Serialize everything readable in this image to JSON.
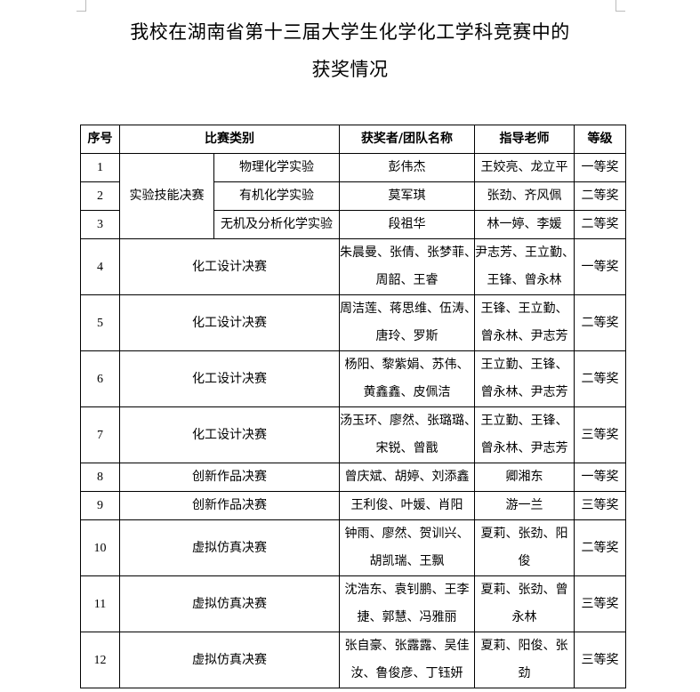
{
  "document": {
    "title_line1": "我校在湖南省第十三届大学生化学化工学科竞赛中的",
    "title_line2": "获奖情况"
  },
  "table": {
    "headers": {
      "no": "序号",
      "category": "比赛类别",
      "winner": "获奖者/团队名称",
      "advisor": "指导老师",
      "grade": "等级"
    },
    "group_category": "实验技能决赛",
    "rows": [
      {
        "no": "1",
        "category": "物理化学实验",
        "winner": [
          "彭伟杰"
        ],
        "advisor": [
          "王姣亮、龙立平"
        ],
        "grade": "一等奖"
      },
      {
        "no": "2",
        "category": "有机化学实验",
        "winner": [
          "莫军琪"
        ],
        "advisor": [
          "张劲、齐风佩"
        ],
        "grade": "二等奖"
      },
      {
        "no": "3",
        "category": "无机及分析化学实验",
        "winner": [
          "段祖华"
        ],
        "advisor": [
          "林一婷、李媛"
        ],
        "grade": "二等奖"
      },
      {
        "no": "4",
        "category": "化工设计决赛",
        "winner": [
          "朱晨曼、张倩、张梦菲、",
          "周韶、王睿"
        ],
        "advisor": [
          "尹志芳、王立勤、",
          "王锋、曾永林"
        ],
        "grade": "一等奖"
      },
      {
        "no": "5",
        "category": "化工设计决赛",
        "winner": [
          "周洁莲、蒋思维、伍涛、",
          "唐玲、罗斯"
        ],
        "advisor": [
          "王锋、王立勤、",
          "曾永林、尹志芳"
        ],
        "grade": "二等奖"
      },
      {
        "no": "6",
        "category": "化工设计决赛",
        "winner": [
          "杨阳、黎紫娟、苏伟、",
          "黄鑫鑫、皮佩洁"
        ],
        "advisor": [
          "王立勤、王锋、",
          "曾永林、尹志芳"
        ],
        "grade": "二等奖"
      },
      {
        "no": "7",
        "category": "化工设计决赛",
        "winner": [
          "汤玉环、廖然、张璐璐、",
          "宋锐、曾戬"
        ],
        "advisor": [
          "王立勤、王锋、",
          "曾永林、尹志芳"
        ],
        "grade": "三等奖"
      },
      {
        "no": "8",
        "category": "创新作品决赛",
        "winner": [
          "曾庆斌、胡婷、刘添鑫"
        ],
        "advisor": [
          "卿湘东"
        ],
        "grade": "一等奖"
      },
      {
        "no": "9",
        "category": "创新作品决赛",
        "winner": [
          "王利俊、叶媛、肖阳"
        ],
        "advisor": [
          "游一兰"
        ],
        "grade": "三等奖"
      },
      {
        "no": "10",
        "category": "虚拟仿真决赛",
        "winner": [
          "钟雨、廖然、贺训兴、",
          "胡凯瑞、王飘"
        ],
        "advisor": [
          "夏莉、张劲、阳",
          "俊"
        ],
        "grade": "二等奖"
      },
      {
        "no": "11",
        "category": "虚拟仿真决赛",
        "winner": [
          "沈浩东、袁钊鹏、王李",
          "捷、郭慧、冯雅丽"
        ],
        "advisor": [
          "夏莉、张劲、曾",
          "永林"
        ],
        "grade": "三等奖"
      },
      {
        "no": "12",
        "category": "虚拟仿真决赛",
        "winner": [
          "张自豪、张露露、吴佳",
          "汝、鲁俊彦、丁钰妍"
        ],
        "advisor": [
          "夏莉、阳俊、张",
          "劲"
        ],
        "grade": "三等奖"
      }
    ]
  }
}
